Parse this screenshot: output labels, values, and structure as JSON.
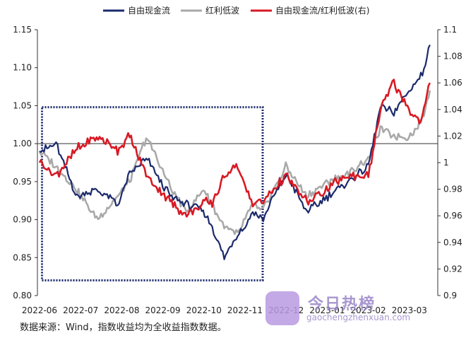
{
  "chart_data": {
    "type": "line",
    "legend": [
      "自由现金流",
      "红利低波",
      "自由现金流/红利低波(右)"
    ],
    "colors": {
      "fcf": "#1b2a6b",
      "div": "#a9a9a9",
      "ratio": "#d81a24",
      "box": "#1b2a6b"
    },
    "x_ticks": [
      "2022-06",
      "2022-07",
      "2022-08",
      "2022-09",
      "2022-10",
      "2022-11",
      "2022-12",
      "2023-01",
      "2023-02",
      "2023-03"
    ],
    "y_left": {
      "ticks": [
        "0.80",
        "0.85",
        "0.90",
        "0.95",
        "1.00",
        "1.05",
        "1.10",
        "1.15"
      ],
      "range": [
        0.8,
        1.15
      ]
    },
    "y_right": {
      "ticks": [
        "0.9",
        "0.92",
        "0.94",
        "0.96",
        "0.98",
        "1",
        "1.02",
        "1.04",
        "1.06",
        "1.08",
        "1.1"
      ],
      "range": [
        0.9,
        1.1
      ]
    },
    "highlight_box": {
      "x_range": [
        0.06,
        5.43
      ],
      "y_range": [
        0.82,
        1.048
      ]
    },
    "reference_line_left": 1.0,
    "series": [
      {
        "name": "自由现金流",
        "axis": "left",
        "x": [
          0.0,
          0.4,
          0.9,
          1.4,
          1.9,
          2.2,
          2.6,
          3.2,
          3.6,
          4.0,
          4.2,
          4.5,
          4.8,
          5.0,
          5.2,
          5.43,
          5.7,
          6.0,
          6.5,
          7.0,
          7.5,
          8.0,
          8.3,
          8.6,
          9.0,
          9.3,
          9.5
        ],
        "values": [
          0.99,
          1.0,
          0.93,
          0.94,
          0.92,
          0.96,
          0.98,
          0.93,
          0.92,
          0.91,
          0.89,
          0.85,
          0.88,
          0.89,
          0.91,
          0.9,
          0.93,
          0.96,
          0.91,
          0.93,
          0.95,
          0.97,
          1.05,
          1.04,
          1.07,
          1.09,
          1.13
        ]
      },
      {
        "name": "红利低波",
        "axis": "left",
        "x": [
          0.0,
          0.4,
          0.9,
          1.4,
          1.9,
          2.2,
          2.6,
          3.2,
          3.6,
          4.0,
          4.2,
          4.5,
          4.8,
          5.0,
          5.2,
          5.43,
          5.7,
          6.0,
          6.5,
          7.0,
          7.5,
          8.0,
          8.3,
          8.6,
          9.0,
          9.3,
          9.5
        ],
        "values": [
          0.99,
          0.97,
          0.94,
          0.9,
          0.93,
          0.95,
          1.01,
          0.94,
          0.91,
          0.94,
          0.92,
          0.89,
          0.88,
          0.9,
          0.92,
          0.91,
          0.94,
          0.97,
          0.93,
          0.95,
          0.96,
          0.98,
          1.02,
          1.01,
          1.01,
          1.03,
          1.07
        ]
      },
      {
        "name": "自由现金流/红利低波(右)",
        "axis": "right",
        "x": [
          0.0,
          0.4,
          0.9,
          1.4,
          1.9,
          2.2,
          2.6,
          3.2,
          3.6,
          4.0,
          4.2,
          4.5,
          4.8,
          5.0,
          5.2,
          5.43,
          5.7,
          6.0,
          6.5,
          7.0,
          7.5,
          8.0,
          8.3,
          8.6,
          9.0,
          9.3,
          9.5
        ],
        "values": [
          1.0,
          0.99,
          1.01,
          1.02,
          1.01,
          1.02,
          0.99,
          0.97,
          0.96,
          0.97,
          0.97,
          0.99,
          1.0,
          0.98,
          0.97,
          0.97,
          0.98,
          0.99,
          0.97,
          0.98,
          0.99,
          0.99,
          1.04,
          1.06,
          1.04,
          1.03,
          1.06
        ]
      }
    ]
  },
  "source_text": "数据来源：Wind，指数收益均为全收益指数数据。",
  "watermark": {
    "title": "今日热榜",
    "url": "gaochengzhenxuan.com"
  }
}
